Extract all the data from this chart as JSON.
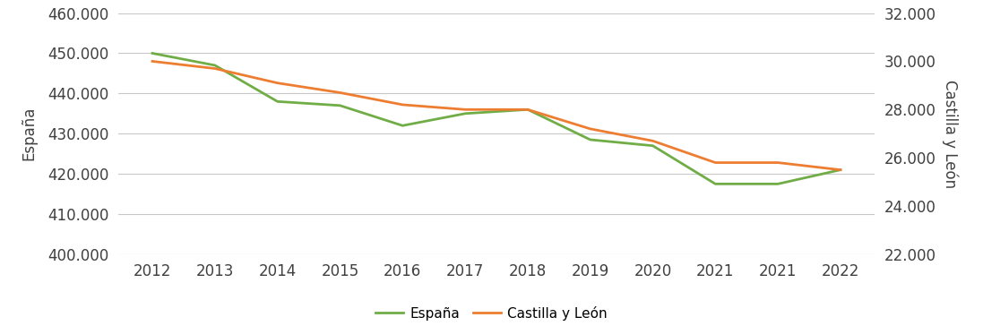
{
  "years": [
    "2012",
    "2013",
    "2014",
    "2015",
    "2016",
    "2017",
    "2018",
    "2019",
    "2020",
    "2021",
    "2021",
    "2022"
  ],
  "espana": [
    450000,
    447000,
    438000,
    437000,
    432000,
    435000,
    436000,
    428500,
    427000,
    417500,
    417500,
    421000
  ],
  "castilla_leon": [
    30000,
    29700,
    29100,
    28700,
    28200,
    28000,
    28000,
    27200,
    26700,
    25800,
    25800,
    25500
  ],
  "espana_color": "#70AD47",
  "castilla_color": "#ED7D31",
  "ylabel_left": "España",
  "ylabel_right": "Castilla y León",
  "ylim_left": [
    400000,
    460000
  ],
  "ylim_right": [
    22000,
    32000
  ],
  "yticks_left": [
    400000,
    410000,
    420000,
    430000,
    440000,
    450000,
    460000
  ],
  "yticks_right": [
    22000,
    24000,
    26000,
    28000,
    30000,
    32000
  ],
  "background_color": "#ffffff",
  "grid_color": "#c8c8c8",
  "legend_label_espana": "España",
  "legend_label_castilla": "Castilla y León",
  "tick_label_fontsize": 12,
  "axis_label_fontsize": 12,
  "legend_fontsize": 11
}
